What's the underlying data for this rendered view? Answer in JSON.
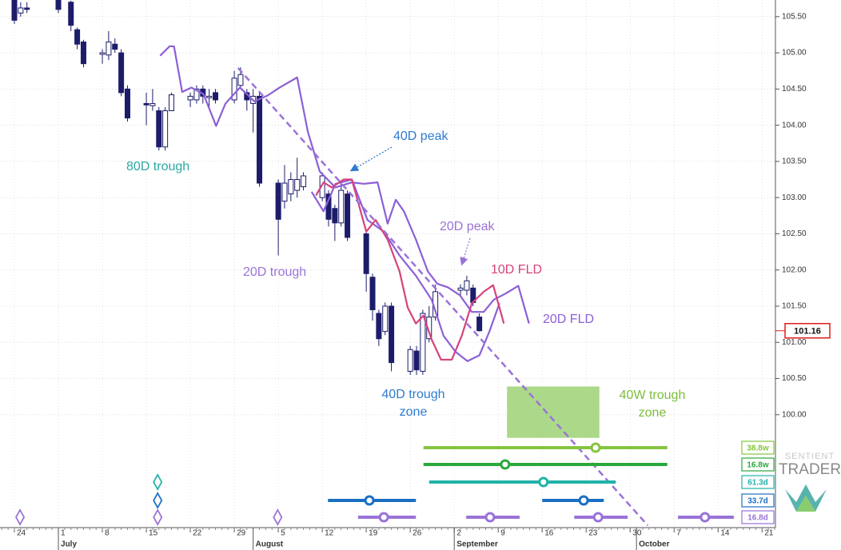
{
  "chart_data": {
    "type": "candlestick",
    "xlim": [
      -2.29,
      121.12
    ],
    "ylim": [
      98.44,
      105.73
    ],
    "grid": true,
    "yticks": [
      {
        "value": 100,
        "label": "100.00"
      },
      {
        "value": 100.5,
        "label": "100.50"
      },
      {
        "value": 101,
        "label": "101.00"
      },
      {
        "value": 101.5,
        "label": "101.50"
      },
      {
        "value": 102,
        "label": "102.00"
      },
      {
        "value": 102.5,
        "label": "102.50"
      },
      {
        "value": 103,
        "label": "103.00"
      },
      {
        "value": 103.5,
        "label": "103.50"
      },
      {
        "value": 104,
        "label": "104.00"
      },
      {
        "value": 104.5,
        "label": "104.50"
      },
      {
        "value": 105,
        "label": "105.00"
      },
      {
        "value": 105.5,
        "label": "105.50"
      }
    ],
    "xticks": [
      {
        "value": 0,
        "label": "24"
      },
      {
        "value": 7,
        "label": "1"
      },
      {
        "value": 14,
        "label": "8"
      },
      {
        "value": 21,
        "label": "15"
      },
      {
        "value": 28,
        "label": "22"
      },
      {
        "value": 35,
        "label": "29"
      },
      {
        "value": 42,
        "label": "5"
      },
      {
        "value": 49,
        "label": "12"
      },
      {
        "value": 56,
        "label": "19"
      },
      {
        "value": 63,
        "label": "26"
      },
      {
        "value": 70,
        "label": "2"
      },
      {
        "value": 77,
        "label": "9"
      },
      {
        "value": 84,
        "label": "16"
      },
      {
        "value": 91,
        "label": "23"
      },
      {
        "value": 98,
        "label": "30"
      },
      {
        "value": 105,
        "label": "7"
      },
      {
        "value": 112,
        "label": "14"
      },
      {
        "value": 119,
        "label": "21"
      }
    ],
    "month_ticks": [
      {
        "value": 7,
        "label": "July"
      },
      {
        "value": 38,
        "label": "August"
      },
      {
        "value": 70,
        "label": "September"
      },
      {
        "value": 99,
        "label": "October"
      }
    ],
    "candles": {
      "up_color": "#ffffff",
      "down_color": "#1c1c6b",
      "x": [
        0,
        1,
        2,
        7,
        9,
        10,
        11,
        14,
        15,
        16,
        17,
        18,
        21,
        22,
        23,
        24,
        25,
        28,
        29,
        30,
        31,
        32,
        35,
        36,
        37,
        38,
        39,
        42,
        43,
        44,
        45,
        46,
        49,
        50,
        51,
        52,
        53,
        56,
        57,
        58,
        59,
        60,
        63,
        64,
        65,
        66,
        67,
        71,
        72,
        73,
        74
      ],
      "open": [
        105.75,
        105.55,
        105.62,
        105.8,
        105.7,
        105.32,
        105.15,
        104.98,
        104.97,
        105.12,
        105.0,
        104.5,
        104.3,
        104.27,
        104.2,
        103.7,
        104.2,
        104.35,
        104.35,
        104.5,
        104.38,
        104.45,
        104.35,
        104.55,
        104.45,
        104.3,
        104.4,
        103.2,
        102.95,
        103.05,
        103.1,
        103.15,
        103.0,
        103.05,
        102.85,
        102.65,
        103.05,
        102.5,
        101.9,
        101.4,
        101.15,
        101.5,
        100.6,
        100.88,
        100.6,
        101.05,
        101.35,
        101.72,
        101.72,
        101.75,
        101.35
      ],
      "high": [
        105.8,
        105.7,
        105.7,
        105.85,
        105.72,
        105.35,
        105.18,
        105.05,
        105.3,
        105.2,
        105.05,
        104.55,
        104.45,
        104.5,
        104.25,
        104.25,
        104.45,
        104.45,
        104.55,
        104.55,
        104.5,
        104.5,
        104.75,
        104.8,
        104.5,
        104.5,
        104.45,
        103.25,
        103.45,
        103.35,
        103.55,
        103.35,
        103.35,
        103.1,
        102.9,
        103.2,
        103.1,
        102.55,
        101.95,
        101.45,
        101.55,
        101.55,
        100.95,
        100.95,
        101.45,
        101.5,
        101.8,
        101.8,
        101.92,
        101.8,
        101.4
      ],
      "low": [
        105.4,
        105.5,
        105.55,
        105.55,
        105.3,
        105.05,
        104.8,
        104.85,
        104.9,
        105.0,
        104.4,
        104.05,
        104.0,
        104.2,
        103.65,
        103.65,
        104.2,
        104.25,
        104.3,
        104.3,
        104.25,
        104.3,
        104.3,
        104.5,
        104.2,
        103.9,
        103.15,
        102.2,
        102.85,
        102.95,
        103.0,
        103.1,
        102.95,
        102.6,
        102.4,
        102.6,
        102.4,
        101.7,
        101.3,
        100.95,
        101.1,
        100.6,
        100.55,
        100.55,
        100.55,
        101.0,
        101.3,
        101.65,
        101.65,
        101.5,
        101.15
      ],
      "close": [
        105.45,
        105.62,
        105.6,
        105.6,
        105.38,
        105.12,
        104.85,
        105.0,
        105.15,
        105.05,
        104.45,
        104.1,
        104.28,
        104.3,
        103.7,
        104.2,
        104.42,
        104.4,
        104.5,
        104.4,
        104.4,
        104.35,
        104.65,
        104.7,
        104.35,
        104.4,
        103.2,
        102.7,
        103.2,
        103.25,
        103.25,
        103.3,
        103.3,
        102.7,
        102.65,
        103.1,
        102.45,
        101.95,
        101.45,
        101.05,
        101.5,
        100.72,
        100.9,
        100.62,
        101.4,
        101.35,
        101.7,
        101.75,
        101.85,
        101.55,
        101.16
      ]
    },
    "last_price": {
      "value": 101.16,
      "label": "101.16",
      "color": "#e01b1b"
    },
    "lines": [
      {
        "name": "20D FLD",
        "color": "#8c5fd8",
        "x": [
          23.2,
          24.7,
          25.4,
          26.7,
          28.2,
          30.1,
          32.1,
          33.6,
          35.9,
          38.2,
          40.3,
          42.2,
          45.0,
          46.7,
          48.6,
          51.1,
          53.7,
          55.6,
          57.8,
          59.4,
          60.7,
          62.0,
          63.9,
          65.8,
          67.3,
          69.0,
          70.9,
          72.8,
          74.7,
          76.3,
          78.1,
          80.2,
          81.9
        ],
        "values": [
          104.96,
          105.09,
          105.09,
          104.46,
          104.52,
          104.43,
          103.99,
          104.3,
          104.52,
          104.33,
          104.41,
          104.52,
          104.66,
          103.91,
          103.36,
          103.14,
          103.21,
          103.19,
          103.21,
          102.64,
          102.97,
          102.81,
          102.42,
          101.98,
          101.81,
          101.76,
          101.65,
          101.42,
          101.42,
          101.59,
          101.67,
          101.78,
          101.26
        ]
      },
      {
        "color": "#8c5fd8",
        "x": [
          47.3,
          49.2,
          51.1,
          53.7,
          56.2,
          58.8,
          61.3,
          63.9,
          66.4,
          68.3,
          70.2,
          72.1,
          74.0,
          75.6,
          77.2
        ],
        "values": [
          103.08,
          102.81,
          103.19,
          103.25,
          102.69,
          102.53,
          102.2,
          101.92,
          101.59,
          101.09,
          100.87,
          100.74,
          100.82,
          101.15,
          101.54
        ]
      },
      {
        "name": "10D FLD",
        "color": "#d6427c",
        "x": [
          48.0,
          49.2,
          50.5,
          52.4,
          53.7,
          54.6,
          56.0,
          57.5,
          59.4,
          61.3,
          62.6,
          63.9,
          65.1,
          66.4,
          67.9,
          69.6,
          71.2,
          72.8,
          74.7,
          76.2,
          77.9
        ],
        "values": [
          103.03,
          103.21,
          103.14,
          103.25,
          103.25,
          102.97,
          102.53,
          102.69,
          102.42,
          101.98,
          101.48,
          101.26,
          101.37,
          101.04,
          100.76,
          100.76,
          101.09,
          101.54,
          101.7,
          101.79,
          101.26
        ]
      },
      {
        "color": "#9a72d8",
        "dashed": true,
        "x": [
          35.6,
          100.8
        ],
        "values": [
          104.79,
          98.47
        ]
      }
    ],
    "zones": [
      {
        "x": [
          78.4,
          93.1
        ],
        "y": [
          99.68,
          100.39
        ],
        "color": "#a3d47c"
      }
    ],
    "annotations": [
      {
        "text": [
          "80D trough"
        ],
        "color": "#2aa9a2"
      },
      {
        "text": [
          "20D trough"
        ],
        "color": "#9a72d8"
      },
      {
        "text": [
          "40D peak"
        ],
        "color": "#2f7bd0"
      },
      {
        "text": [
          "20D peak"
        ],
        "color": "#9a72d8"
      },
      {
        "text": [
          "10D FLD"
        ],
        "color": "#d6427c"
      },
      {
        "text": [
          "20D FLD"
        ],
        "color": "#8c5fd8"
      },
      {
        "text": [
          "40D trough",
          "zone"
        ],
        "color": "#2f7bd0"
      },
      {
        "text": [
          "40W trough",
          "zone"
        ],
        "color": "#7cbd3a"
      }
    ],
    "cycle_bars": [
      {
        "label": "38.8w",
        "color": "#86c440",
        "segments": [
          [
            65.1,
            92.5,
            103.9
          ]
        ],
        "diamonds": []
      },
      {
        "label": "16.8w",
        "color": "#2aa83a",
        "segments": [
          [
            65.1,
            78.1,
            103.9
          ]
        ],
        "diamonds": []
      },
      {
        "label": "61.3d",
        "color": "#22b2a8",
        "segments": [
          [
            66.0,
            84.2,
            95.7
          ]
        ],
        "diamonds": [
          22.8
        ]
      },
      {
        "label": "33.7d",
        "color": "#1a6fc4",
        "segments": [
          [
            49.9,
            56.5,
            63.9
          ],
          [
            84.0,
            90.6,
            93.8
          ]
        ],
        "diamonds": [
          22.8
        ]
      },
      {
        "label": "16.8d",
        "color": "#9a72d8",
        "segments": [
          [
            54.7,
            58.8,
            63.9
          ],
          [
            71.9,
            75.7,
            80.4
          ],
          [
            89.1,
            92.9,
            97.6
          ],
          [
            105.6,
            109.9,
            114.5
          ]
        ],
        "diamonds": [
          0.9,
          22.8,
          41.9
        ]
      }
    ],
    "logo": [
      "SENTIENT",
      "TRADER"
    ]
  }
}
